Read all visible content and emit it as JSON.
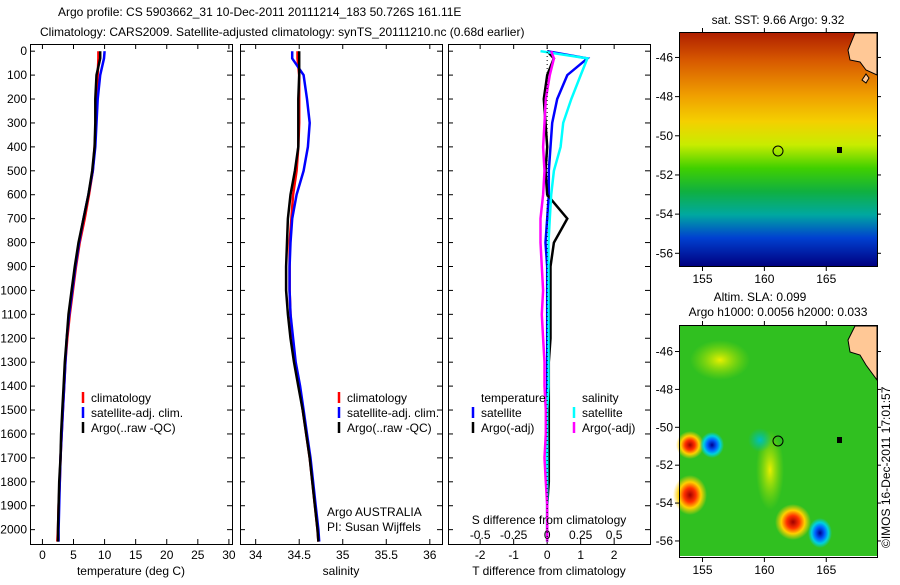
{
  "title": {
    "line1": "Argo profile: CS 5903662_31 10-Dec-2011 20111214_183 50.726S 161.11E",
    "line2": "Climatology: CARS2009. Satellite-adjusted climatology: synTS_20111210.nc (0.68d earlier)"
  },
  "credit": "©IMOS 16-Dec-2011 17:01:57",
  "colors": {
    "climatology": "#ff0000",
    "satellite": "#0000ff",
    "argo": "#000000",
    "sal_satellite": "#00ffff",
    "sal_argo": "#ff00ff"
  },
  "chart_data": [
    {
      "type": "line",
      "id": "temperature",
      "xlabel": "temperature (deg C)",
      "ylabel": "",
      "xlim": [
        -2,
        30.5
      ],
      "ylim": [
        2060,
        -30
      ],
      "xticks": [
        0,
        5,
        10,
        15,
        20,
        25,
        30
      ],
      "yticks": [
        0,
        100,
        200,
        300,
        400,
        500,
        600,
        700,
        800,
        900,
        1000,
        1100,
        1200,
        1300,
        1400,
        1500,
        1600,
        1700,
        1800,
        1900,
        2000
      ],
      "legend": [
        "climatology",
        "satellite-adj. clim.",
        "Argo(..raw -QC)"
      ],
      "depth": [
        0,
        30,
        100,
        200,
        300,
        400,
        500,
        600,
        700,
        800,
        900,
        1000,
        1100,
        1200,
        1300,
        1400,
        1500,
        1600,
        1700,
        1800,
        1900,
        2000,
        2050
      ],
      "series": [
        {
          "name": "climatology",
          "values": [
            9.0,
            9.0,
            8.9,
            8.7,
            8.6,
            8.4,
            8.1,
            7.5,
            6.8,
            6.0,
            5.4,
            4.9,
            4.4,
            4.0,
            3.7,
            3.5,
            3.3,
            3.1,
            2.9,
            2.8,
            2.6,
            2.5,
            2.4
          ]
        },
        {
          "name": "satellite-adj. clim.",
          "values": [
            10.0,
            9.9,
            9.3,
            8.9,
            8.7,
            8.5,
            8.1,
            7.4,
            6.6,
            5.9,
            5.3,
            4.8,
            4.3,
            3.9,
            3.7,
            3.5,
            3.3,
            3.1,
            2.9,
            2.8,
            2.7,
            2.6,
            2.6
          ]
        },
        {
          "name": "Argo(..raw -QC)",
          "values": [
            9.3,
            9.3,
            8.7,
            8.5,
            8.5,
            8.4,
            8.0,
            7.4,
            6.6,
            5.8,
            5.2,
            4.7,
            4.2,
            3.9,
            3.6,
            3.4,
            3.2,
            3.0,
            2.9,
            2.7,
            2.6,
            2.5,
            2.5
          ]
        }
      ]
    },
    {
      "type": "line",
      "id": "salinity",
      "xlabel": "salinity",
      "xlim": [
        33.82,
        36.14
      ],
      "ylim": [
        2060,
        -30
      ],
      "xticks": [
        34,
        34.5,
        35,
        35.5,
        36
      ],
      "legend": [
        "climatology",
        "satellite-adj. clim.",
        "Argo(..raw -QC)"
      ],
      "annotation": [
        "Argo AUSTRALIA",
        "PI: Susan Wijffels"
      ],
      "depth": [
        0,
        30,
        100,
        200,
        300,
        400,
        500,
        600,
        700,
        800,
        900,
        1000,
        1100,
        1200,
        1300,
        1400,
        1500,
        1600,
        1700,
        1800,
        1900,
        2000,
        2050
      ],
      "series": [
        {
          "name": "climatology",
          "values": [
            34.48,
            34.48,
            34.5,
            34.5,
            34.5,
            34.49,
            34.47,
            34.43,
            34.41,
            34.39,
            34.39,
            34.39,
            34.4,
            34.42,
            34.45,
            34.5,
            34.54,
            34.58,
            34.62,
            34.65,
            34.68,
            34.71,
            34.72
          ]
        },
        {
          "name": "satellite-adj. clim.",
          "values": [
            34.42,
            34.42,
            34.55,
            34.59,
            34.62,
            34.6,
            34.55,
            34.47,
            34.42,
            34.4,
            34.39,
            34.39,
            34.4,
            34.43,
            34.46,
            34.51,
            34.55,
            34.59,
            34.63,
            34.66,
            34.69,
            34.72,
            34.73
          ]
        },
        {
          "name": "Argo(..raw -QC)",
          "values": [
            34.5,
            34.5,
            34.5,
            34.49,
            34.49,
            34.49,
            34.45,
            34.4,
            34.37,
            34.36,
            34.35,
            34.35,
            34.37,
            34.4,
            34.44,
            34.49,
            34.54,
            34.58,
            34.62,
            34.65,
            34.68,
            34.71,
            34.72
          ]
        }
      ]
    },
    {
      "type": "line",
      "id": "difference",
      "xlabel": "T difference from climatology",
      "xlabel2": "S difference from climatology",
      "xlim": [
        -2.96,
        3.07
      ],
      "ylim": [
        2060,
        -30
      ],
      "xticks": [
        -2,
        -1,
        0,
        1,
        2
      ],
      "xticks2": [
        "-0.5",
        "-0.25",
        "0",
        "0.25",
        "0.5"
      ],
      "xticks2_values": [
        -0.5,
        -0.25,
        0,
        0.25,
        0.5
      ],
      "legend_headers": [
        "temperature",
        "salinity"
      ],
      "legend": [
        "satellite",
        "Argo(-adj)",
        "satellite",
        "Argo(-adj)"
      ],
      "depth": [
        0,
        30,
        100,
        200,
        300,
        400,
        500,
        600,
        700,
        800,
        900,
        1000,
        1100,
        1200,
        1300,
        1400,
        1500,
        1600,
        1700,
        1800,
        1900,
        2000,
        2050
      ],
      "series": [
        {
          "name": "T satellite",
          "values": [
            0,
            1.2,
            0.6,
            0.3,
            0.15,
            0.1,
            0.05,
            0.05,
            0.0,
            -0.05,
            0,
            0,
            0,
            0,
            0,
            0,
            0,
            0,
            0,
            0,
            0,
            0,
            0
          ]
        },
        {
          "name": "T Argo(-adj)",
          "values": [
            0,
            0.2,
            0.0,
            -0.1,
            -0.05,
            0.0,
            -0.05,
            0.0,
            0.6,
            0.2,
            0.1,
            0.1,
            0.1,
            0.1,
            0.05,
            0.05,
            0.05,
            0.05,
            0.05,
            0.05,
            0.0,
            0.0,
            0.0
          ]
        },
        {
          "name": "S satellite",
          "values": [
            -0.05,
            0.3,
            0.25,
            0.18,
            0.12,
            0.1,
            0.05,
            0.03,
            0.02,
            0.01,
            0.01,
            0.01,
            0.01,
            0.01,
            0.01,
            0.01,
            0.0,
            0.0,
            0.0,
            0.0,
            0.0,
            0.0,
            0.0
          ]
        },
        {
          "name": "S Argo(-adj)",
          "values": [
            0.03,
            0.05,
            0.02,
            -0.01,
            -0.02,
            -0.03,
            -0.02,
            -0.03,
            -0.05,
            -0.05,
            -0.04,
            -0.03,
            -0.04,
            -0.03,
            -0.02,
            -0.02,
            -0.01,
            -0.01,
            -0.02,
            -0.01,
            0.0,
            0.0,
            0.0
          ]
        }
      ]
    },
    {
      "type": "heatmap",
      "id": "sst-map",
      "title": "sat. SST: 9.66 Argo: 9.32",
      "xlim": [
        153.1,
        169.1
      ],
      "ylim": [
        -56.7,
        -44.7
      ],
      "xticks": [
        155,
        160,
        165
      ],
      "yticks": [
        -46,
        -48,
        -50,
        -52,
        -54,
        -56
      ],
      "marker": {
        "lon": 161.11,
        "lat": -50.726
      }
    },
    {
      "type": "heatmap",
      "id": "sla-map",
      "title": "Altim. SLA: 0.099",
      "subtitle": "Argo h1000: 0.0056 h2000: 0.033",
      "xlim": [
        153.1,
        169.1
      ],
      "ylim": [
        -56.9,
        -44.6
      ],
      "xticks": [
        155,
        160,
        165
      ],
      "yticks": [
        -46,
        -48,
        -50,
        -52,
        -54,
        -56
      ],
      "marker": {
        "lon": 161.11,
        "lat": -50.726
      }
    }
  ]
}
